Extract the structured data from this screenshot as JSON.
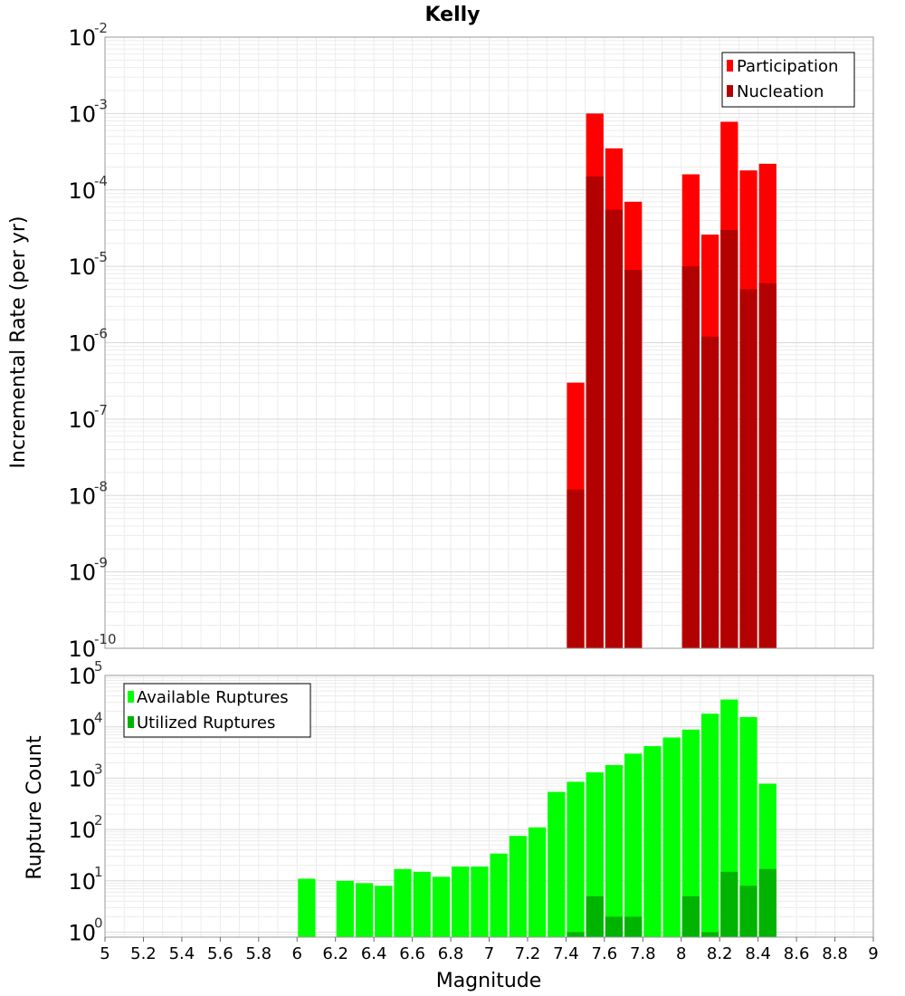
{
  "chart_data": [
    {
      "type": "bar",
      "title": "Kelly",
      "xlabel": "",
      "ylabel": "Incremental Rate (per yr)",
      "yscale": "log",
      "ylim": [
        1e-10,
        0.01
      ],
      "xlim": [
        5,
        9
      ],
      "legend_position": "top-right",
      "grid": true,
      "x": [
        7.45,
        7.55,
        7.65,
        7.75,
        8.05,
        8.15,
        8.25,
        8.35,
        8.45
      ],
      "series": [
        {
          "name": "Participation",
          "color": "#ff0000",
          "values": [
            3e-07,
            0.001,
            0.00035,
            7e-05,
            0.00016,
            2.6e-05,
            0.00078,
            0.00018,
            0.00022
          ]
        },
        {
          "name": "Nucleation",
          "color": "#b30000",
          "values": [
            1.2e-08,
            0.00015,
            5.5e-05,
            9e-06,
            1e-05,
            1.2e-06,
            3e-05,
            5e-06,
            6e-06
          ]
        }
      ],
      "y_tick_exponents": [
        "-2",
        "-3",
        "-4",
        "-5",
        "-6",
        "-7",
        "-8",
        "-9",
        "-10"
      ]
    },
    {
      "type": "bar",
      "title": "",
      "xlabel": "Magnitude",
      "ylabel": "Rupture Count",
      "yscale": "log",
      "ylim": [
        0.8,
        100000.0
      ],
      "xlim": [
        5,
        9
      ],
      "legend_position": "top-left",
      "grid": true,
      "x": [
        6.05,
        6.25,
        6.35,
        6.45,
        6.55,
        6.65,
        6.75,
        6.85,
        6.95,
        7.05,
        7.15,
        7.25,
        7.35,
        7.45,
        7.55,
        7.65,
        7.75,
        7.85,
        7.95,
        8.05,
        8.15,
        8.25,
        8.35,
        8.45
      ],
      "series": [
        {
          "name": "Available Ruptures",
          "color": "#00ff00",
          "values": [
            11,
            10,
            9,
            8,
            17,
            15,
            12,
            19,
            19,
            34,
            75,
            110,
            540,
            850,
            1300,
            1800,
            3000,
            4200,
            6200,
            8800,
            18000,
            34000,
            15500,
            780
          ]
        },
        {
          "name": "Utilized Ruptures",
          "color": "#00b300",
          "values": [
            0,
            0,
            0,
            0,
            0,
            0,
            0,
            0,
            0,
            0,
            0,
            0,
            0,
            1,
            5,
            2,
            2,
            0,
            0,
            5,
            1,
            15,
            8,
            17
          ]
        }
      ],
      "x_ticks": [
        "5",
        "5.2",
        "5.4",
        "5.6",
        "5.8",
        "6",
        "6.2",
        "6.4",
        "6.6",
        "6.8",
        "7",
        "7.2",
        "7.4",
        "7.6",
        "7.8",
        "8",
        "8.2",
        "8.4",
        "8.6",
        "8.8",
        "9"
      ],
      "y_tick_exponents": [
        "5",
        "4",
        "3",
        "2",
        "1",
        "0"
      ]
    }
  ]
}
